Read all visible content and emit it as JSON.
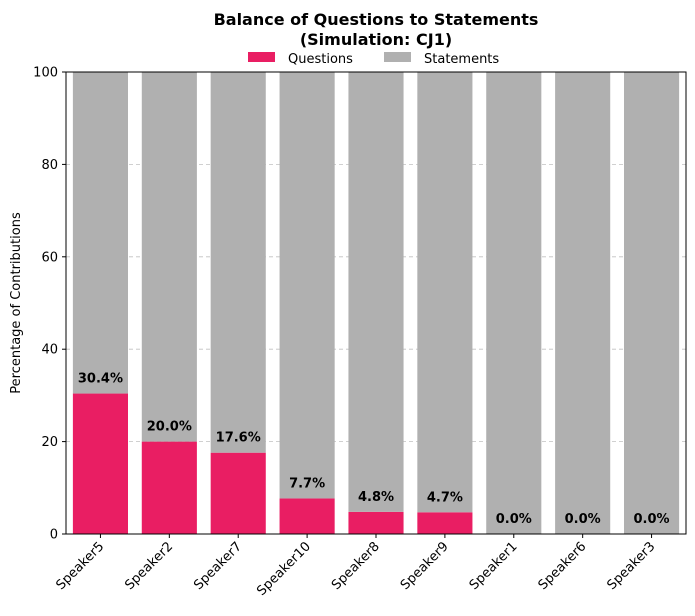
{
  "chart_data": {
    "type": "bar",
    "stacked": true,
    "title_lines": [
      "Balance of Questions to Statements",
      "(Simulation: CJ1)"
    ],
    "xlabel": "",
    "ylabel": "Percentage of Contributions",
    "ylim": [
      0,
      100
    ],
    "yticks": [
      0,
      20,
      40,
      60,
      80,
      100
    ],
    "grid": "y-dashed",
    "legend_position": "top-center",
    "categories": [
      "Speaker5",
      "Speaker2",
      "Speaker7",
      "Speaker10",
      "Speaker8",
      "Speaker9",
      "Speaker1",
      "Speaker6",
      "Speaker3"
    ],
    "series": [
      {
        "name": "Questions",
        "color": "#e91e63",
        "values": [
          30.4,
          20.0,
          17.6,
          7.7,
          4.8,
          4.7,
          0.0,
          0.0,
          0.0
        ]
      },
      {
        "name": "Statements",
        "color": "#b0b0b0",
        "values": [
          69.6,
          80.0,
          82.4,
          92.3,
          95.2,
          95.3,
          100.0,
          100.0,
          100.0
        ]
      }
    ],
    "data_labels": [
      "30.4%",
      "20.0%",
      "17.6%",
      "7.7%",
      "4.8%",
      "4.7%",
      "0.0%",
      "0.0%",
      "0.0%"
    ]
  }
}
